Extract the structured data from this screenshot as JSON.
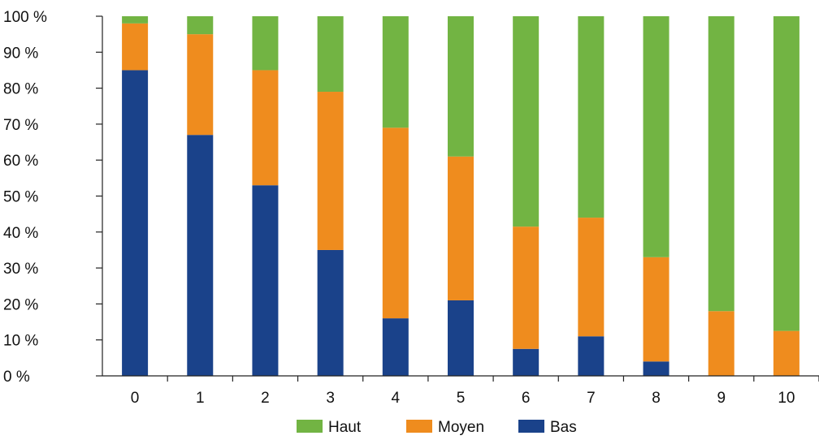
{
  "chart_data": {
    "type": "bar",
    "stacked": true,
    "categories": [
      "0",
      "1",
      "2",
      "3",
      "4",
      "5",
      "6",
      "7",
      "8",
      "9",
      "10"
    ],
    "series": [
      {
        "name": "Bas",
        "color": "#1a428a",
        "values": [
          85,
          67,
          53,
          35,
          16,
          21,
          7.5,
          11,
          4,
          0,
          0
        ]
      },
      {
        "name": "Moyen",
        "color": "#ef8c1e",
        "values": [
          13,
          28,
          32,
          44,
          53,
          40,
          34,
          33,
          29,
          18,
          12.5
        ]
      },
      {
        "name": "Haut",
        "color": "#72b443",
        "values": [
          2,
          5,
          15,
          21,
          31,
          39,
          58.5,
          56,
          67,
          82,
          87.5
        ]
      }
    ],
    "legend_order": [
      "Haut",
      "Moyen",
      "Bas"
    ],
    "y_ticks": [
      "0 %",
      "10 %",
      "20 %",
      "30 %",
      "40 %",
      "50 %",
      "60 %",
      "70 %",
      "80 %",
      "90 %",
      "100 %"
    ],
    "ylim": [
      0,
      100
    ],
    "grid": false,
    "legend_position": "bottom"
  }
}
